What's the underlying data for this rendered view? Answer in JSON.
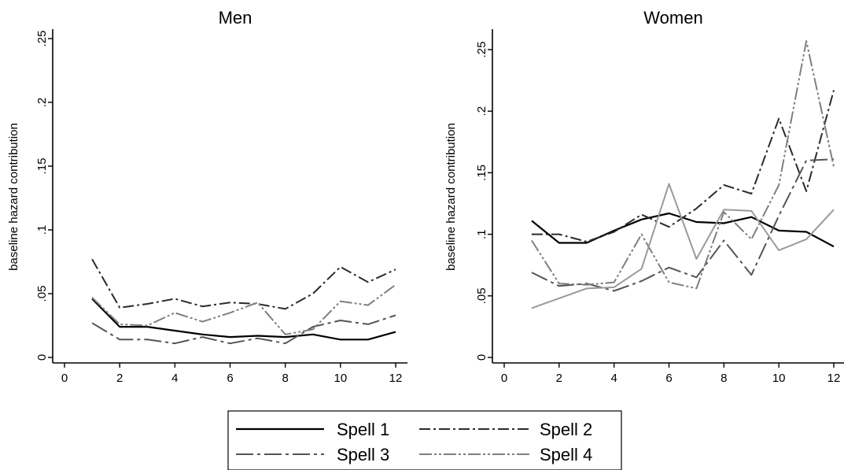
{
  "chart_data": [
    {
      "type": "line",
      "title": "Men",
      "xlabel": "",
      "ylabel": "baseline hazard contribution",
      "xlim": [
        0,
        12
      ],
      "ylim": [
        0,
        0.25
      ],
      "xticks": [
        0,
        2,
        4,
        6,
        8,
        10,
        12
      ],
      "yticks": [
        0,
        0.05,
        0.1,
        0.15,
        0.2,
        0.25
      ],
      "ytick_labels": [
        "0",
        ".05",
        ".1",
        ".15",
        ".2",
        ".25"
      ],
      "x": [
        1,
        2,
        3,
        4,
        5,
        6,
        7,
        8,
        9,
        10,
        11,
        12
      ],
      "series": [
        {
          "name": "Spell 1",
          "values": [
            0.046,
            0.024,
            0.024,
            0.021,
            0.018,
            0.016,
            0.017,
            0.016,
            0.018,
            0.014,
            0.014,
            0.02
          ]
        },
        {
          "name": "Spell 2",
          "values": [
            0.077,
            0.039,
            0.042,
            0.046,
            0.04,
            0.043,
            0.042,
            0.038,
            0.05,
            0.071,
            0.059,
            0.069
          ]
        },
        {
          "name": "Spell 3",
          "values": [
            0.027,
            0.014,
            0.014,
            0.011,
            0.016,
            0.011,
            0.015,
            0.011,
            0.024,
            0.029,
            0.026,
            0.033
          ]
        },
        {
          "name": "Spell 4",
          "values": [
            0.047,
            0.026,
            0.025,
            0.035,
            0.028,
            0.035,
            0.043,
            0.018,
            0.022,
            0.044,
            0.041,
            0.057
          ]
        }
      ]
    },
    {
      "type": "line",
      "title": "Women",
      "xlabel": "",
      "ylabel": "baseline hazard contribution",
      "xlim": [
        0,
        12
      ],
      "ylim": [
        0,
        0.25
      ],
      "xticks": [
        0,
        2,
        4,
        6,
        8,
        10,
        12
      ],
      "yticks": [
        0,
        0.05,
        0.1,
        0.15,
        0.2,
        0.25
      ],
      "ytick_labels": [
        "0",
        ".05",
        ".1",
        ".15",
        ".2",
        ".25"
      ],
      "x": [
        1,
        2,
        3,
        4,
        5,
        6,
        7,
        8,
        9,
        10,
        11,
        12
      ],
      "series": [
        {
          "name": "Spell 1",
          "values": [
            0.111,
            0.093,
            0.093,
            0.103,
            0.112,
            0.117,
            0.11,
            0.109,
            0.114,
            0.103,
            0.102,
            0.09
          ]
        },
        {
          "name": "Spell 2",
          "values": [
            0.1,
            0.1,
            0.094,
            0.102,
            0.116,
            0.106,
            0.121,
            0.14,
            0.133,
            0.194,
            0.135,
            0.217
          ]
        },
        {
          "name": "Spell 3",
          "values": [
            0.069,
            0.058,
            0.06,
            0.054,
            0.062,
            0.073,
            0.065,
            0.095,
            0.067,
            0.115,
            0.16,
            0.161
          ]
        },
        {
          "name": "Spell 4",
          "values": [
            0.095,
            0.06,
            0.059,
            0.061,
            0.1,
            0.061,
            0.056,
            0.118,
            0.096,
            0.14,
            0.257,
            0.155
          ]
        },
        {
          "name": "",
          "values": [
            0.04,
            0.048,
            0.056,
            0.057,
            0.072,
            0.141,
            0.08,
            0.12,
            0.119,
            0.087,
            0.096,
            0.12
          ]
        }
      ]
    }
  ],
  "legend": {
    "items": [
      {
        "label": "Spell 1",
        "style": "solid"
      },
      {
        "label": "Spell 2",
        "style": "dash-dot"
      },
      {
        "label": "Spell 3",
        "style": "long-dash"
      },
      {
        "label": "Spell 4",
        "style": "dash-dot-dot"
      }
    ]
  },
  "colors": {
    "spell1": "#000000",
    "spell2": "#2b2b2b",
    "spell3": "#555555",
    "spell4": "#7f7f7f",
    "extra": "#9a9a9a",
    "axis": "#000000"
  }
}
